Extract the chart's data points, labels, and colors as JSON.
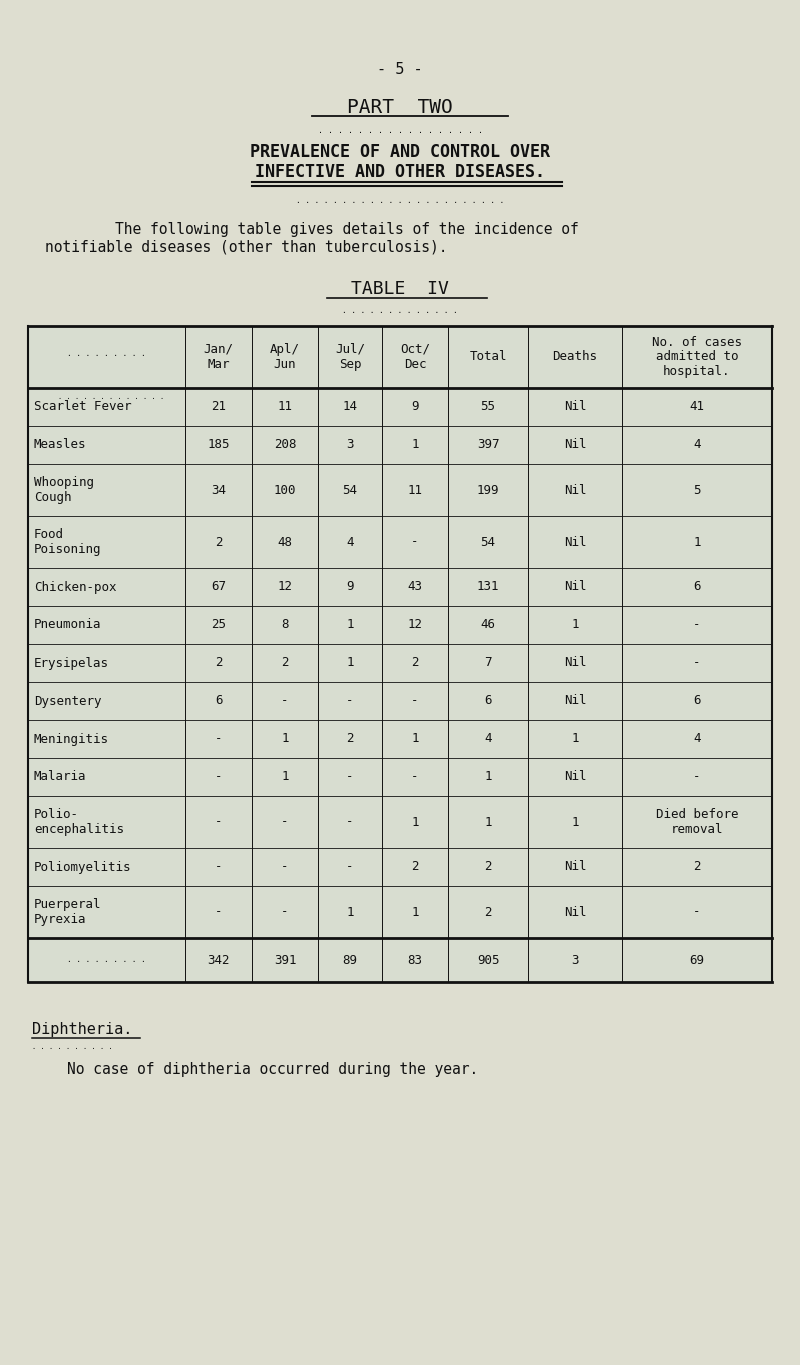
{
  "page_number": "- 5 -",
  "part_title": "PART  TWO",
  "subtitle_line1": "PREVALENCE OF AND CONTROL OVER",
  "subtitle_line2": "INFECTIVE AND OTHER DISEASES.",
  "intro_text_line1": "    The following table gives details of the incidence of",
  "intro_text_line2": "notifiable diseases (other than tuberculosis).",
  "table_title": "TABLE  IV",
  "col_headers": [
    "Jan/\nMar",
    "Apl/\nJun",
    "Jul/\nSep",
    "Oct/\nDec",
    "Total",
    "Deaths",
    "No. of cases\nadmitted to\nhospital."
  ],
  "rows": [
    [
      "Scarlet Fever",
      "21",
      "11",
      "14",
      "9",
      "55",
      "Nil",
      "41"
    ],
    [
      "Measles",
      "185",
      "208",
      "3",
      "1",
      "397",
      "Nil",
      "4"
    ],
    [
      "Whooping\nCough",
      "34",
      "100",
      "54",
      "11",
      "199",
      "Nil",
      "5"
    ],
    [
      "Food\nPoisoning",
      "2",
      "48",
      "4",
      "-",
      "54",
      "Nil",
      "1"
    ],
    [
      "Chicken-pox",
      "67",
      "12",
      "9",
      "43",
      "131",
      "Nil",
      "6"
    ],
    [
      "Pneumonia",
      "25",
      "8",
      "1",
      "12",
      "46",
      "1",
      "-"
    ],
    [
      "Erysipelas",
      "2",
      "2",
      "1",
      "2",
      "7",
      "Nil",
      "-"
    ],
    [
      "Dysentery",
      "6",
      "-",
      "-",
      "-",
      "6",
      "Nil",
      "6"
    ],
    [
      "Meningitis",
      "-",
      "1",
      "2",
      "1",
      "4",
      "1",
      "4"
    ],
    [
      "Malaria",
      "-",
      "1",
      "-",
      "-",
      "1",
      "Nil",
      "-"
    ],
    [
      "Polio-\nencephalitis",
      "-",
      "-",
      "-",
      "1",
      "1",
      "1",
      "Died before\nremoval"
    ],
    [
      "Poliomyelitis",
      "-",
      "-",
      "-",
      "2",
      "2",
      "Nil",
      "2"
    ],
    [
      "Puerperal\nPyrexia",
      "-",
      "-",
      "1",
      "1",
      "2",
      "Nil",
      "-"
    ]
  ],
  "totals_row": [
    "342",
    "391",
    "89",
    "83",
    "905",
    "3",
    "69"
  ],
  "diphtheria_heading": "Diphtheria.",
  "diphtheria_text": "    No case of diphtheria occurred during the year.",
  "bg_color": "#deded0",
  "text_color": "#111111",
  "table_bg": "#d8ddd0"
}
